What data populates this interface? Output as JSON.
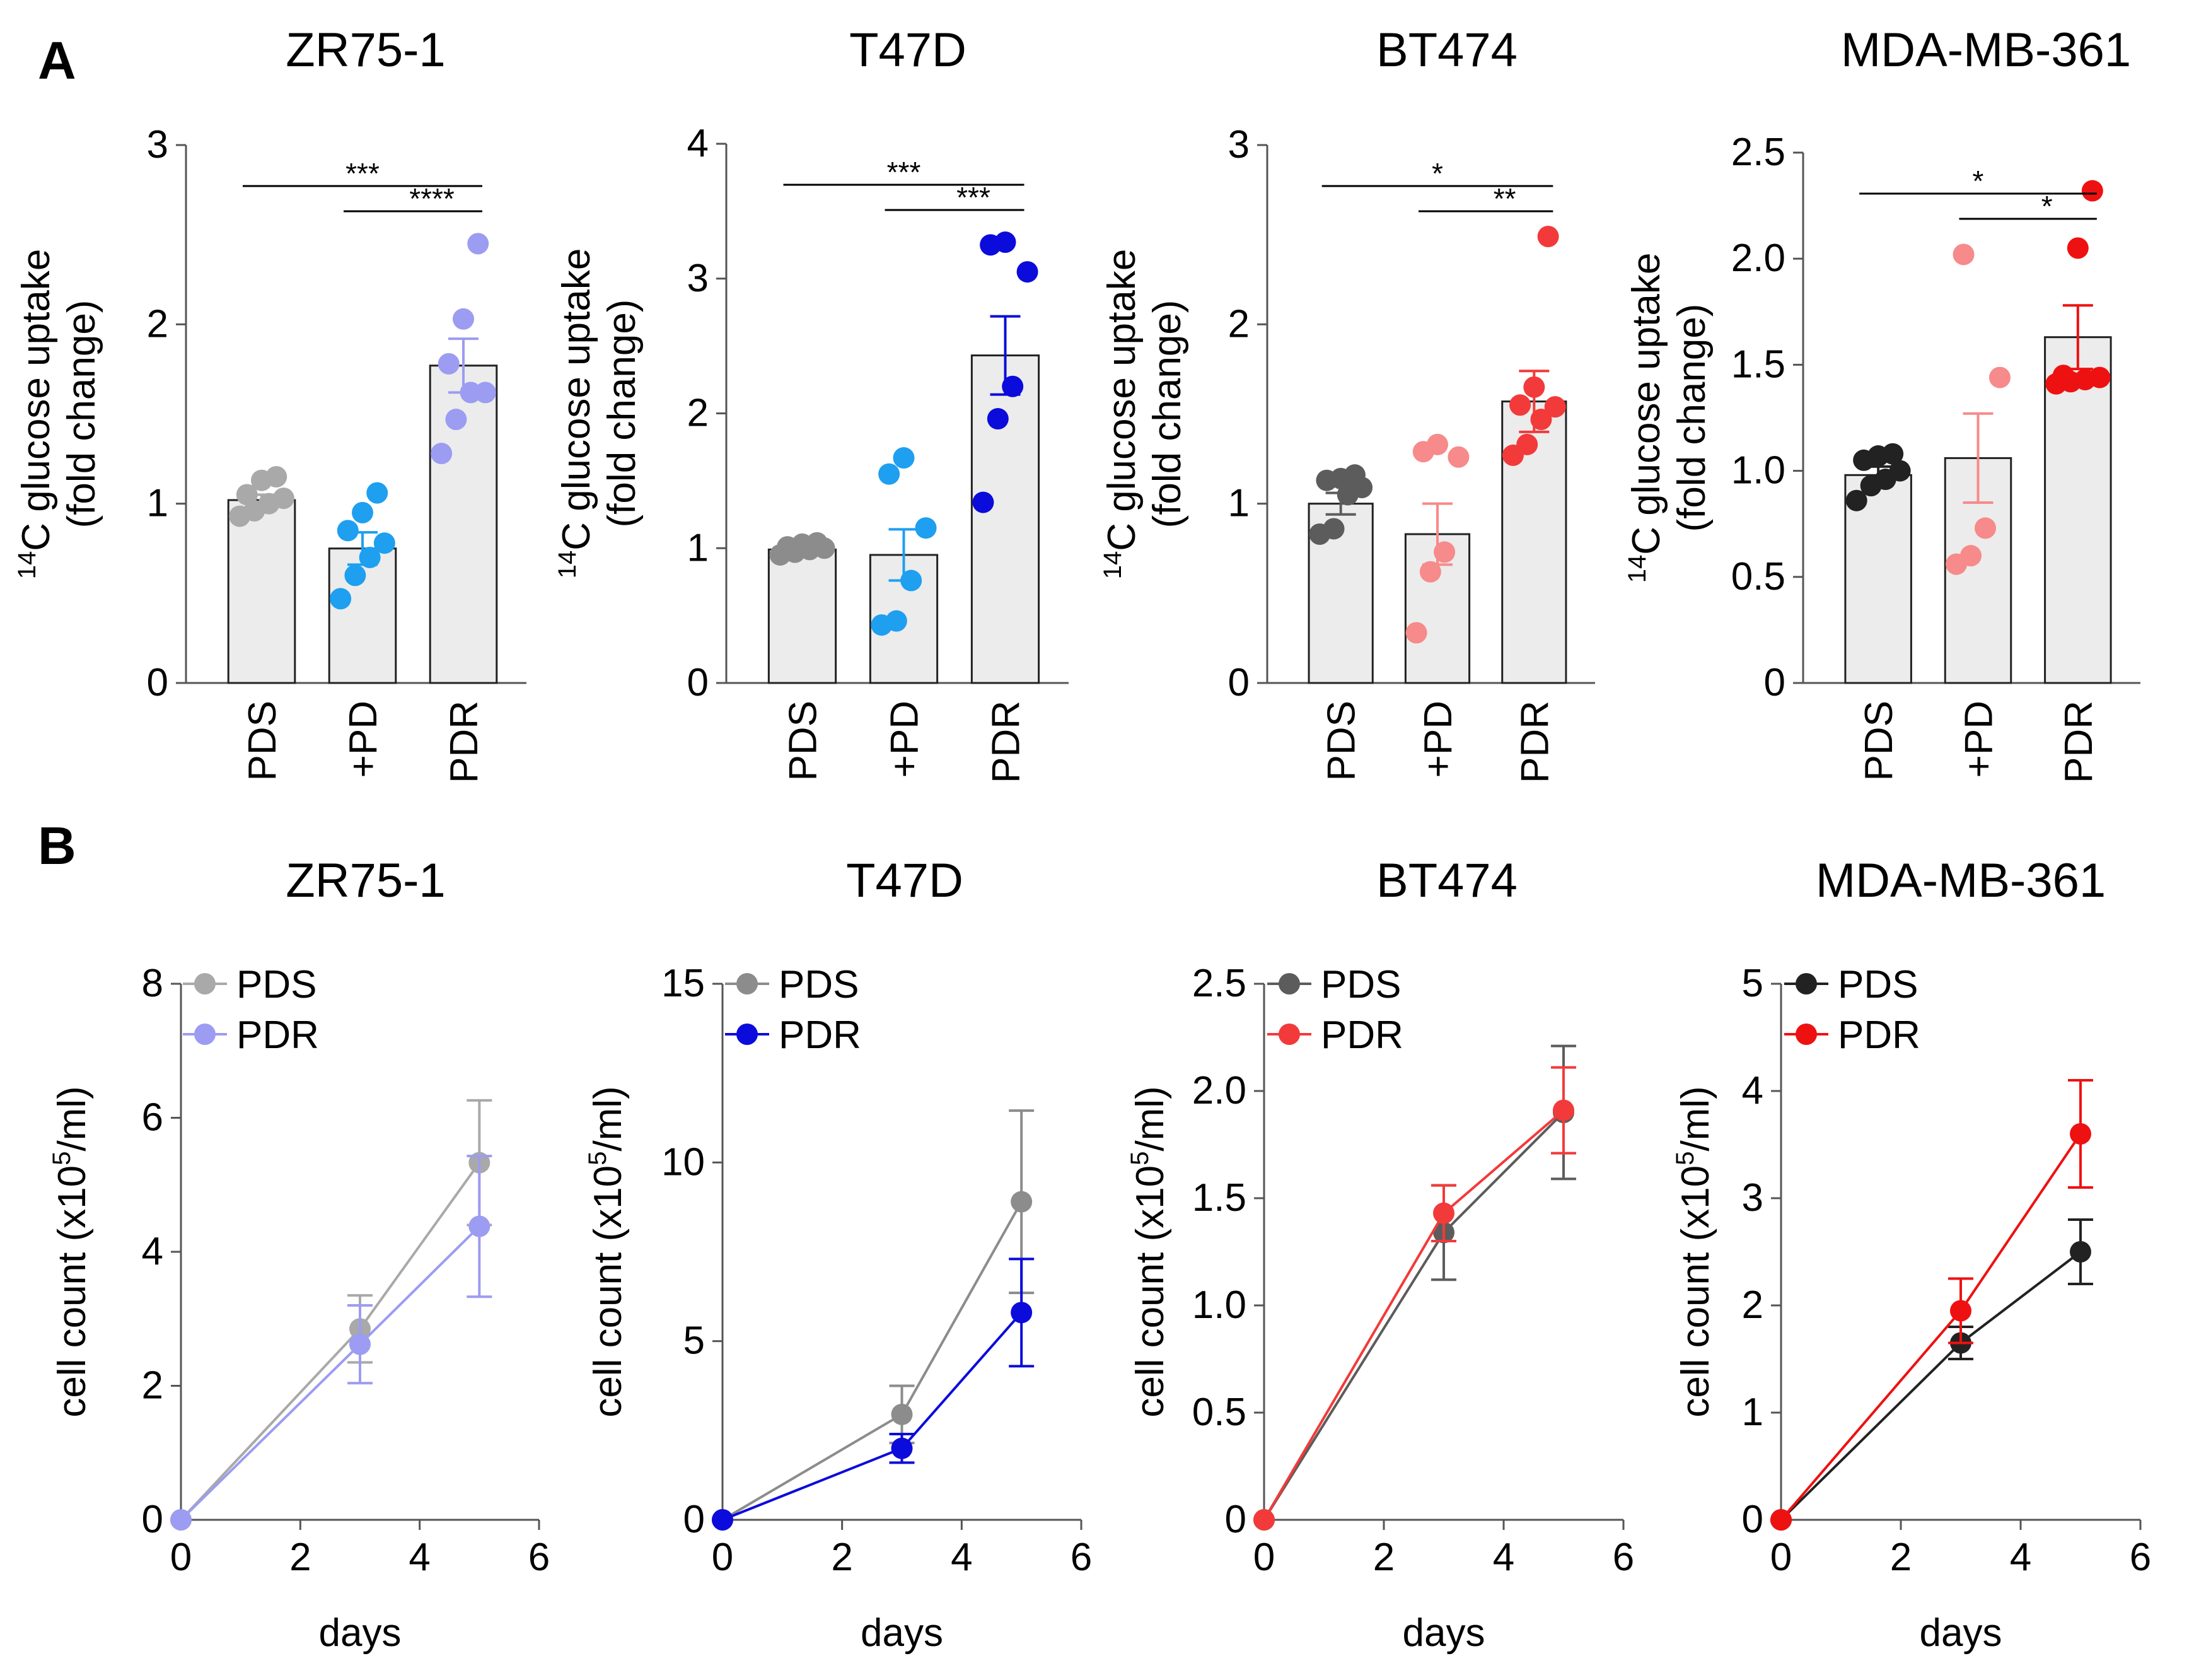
{
  "panels": {
    "a": "A",
    "b": "B"
  },
  "axis_labels": {
    "bar_ylabel_iso": "14",
    "bar_ylabel_main": "C glucose uptake",
    "bar_ylabel_sub": "(fold change)",
    "line_ylabel_pre": "cell count (x10",
    "line_ylabel_sup": "5",
    "line_ylabel_post": "/ml)",
    "line_xlabel": "days"
  },
  "chart_data": [
    {
      "type": "bar",
      "panel": "A",
      "title": "ZR75-1",
      "categories": [
        "PDS",
        "+PD",
        "PDR"
      ],
      "values": [
        1.02,
        0.75,
        1.77
      ],
      "sem": [
        0.03,
        0.09,
        0.15
      ],
      "points": [
        [
          0.93,
          0.96,
          1.0,
          1.03,
          1.05,
          1.13,
          1.15
        ],
        [
          0.47,
          0.6,
          0.7,
          0.78,
          0.85,
          0.95,
          1.06
        ],
        [
          1.28,
          1.47,
          1.62,
          1.62,
          1.78,
          2.03,
          2.45
        ]
      ],
      "point_colors": [
        "#a9a9a9",
        "#1e9ff0",
        "#9c9cf2"
      ],
      "ylim": [
        0,
        3
      ],
      "yticks": [
        "0",
        "1",
        "2",
        "3"
      ],
      "significance": [
        {
          "from": 0,
          "to": 2,
          "label": "***"
        },
        {
          "from": 1,
          "to": 2,
          "label": "****"
        }
      ]
    },
    {
      "type": "bar",
      "panel": "A",
      "title": "T47D",
      "categories": [
        "PDS",
        "+PD",
        "PDR"
      ],
      "values": [
        0.99,
        0.95,
        2.43
      ],
      "sem": [
        0.02,
        0.19,
        0.29
      ],
      "points": [
        [
          0.95,
          0.97,
          0.99,
          1.0,
          1.01,
          1.03,
          1.04
        ],
        [
          0.43,
          0.46,
          0.76,
          1.15,
          1.55,
          1.67
        ],
        [
          1.34,
          1.96,
          2.2,
          3.05,
          3.25,
          3.27
        ]
      ],
      "point_colors": [
        "#8c8c8c",
        "#1e9ff0",
        "#0b0bdb"
      ],
      "ylim": [
        0,
        4
      ],
      "yticks": [
        "0",
        "1",
        "2",
        "3",
        "4"
      ],
      "significance": [
        {
          "from": 0,
          "to": 2,
          "label": "***"
        },
        {
          "from": 1,
          "to": 2,
          "label": "***"
        }
      ]
    },
    {
      "type": "bar",
      "panel": "A",
      "title": "BT474",
      "categories": [
        "PDS",
        "+PD",
        "PDR"
      ],
      "values": [
        1.0,
        0.83,
        1.57
      ],
      "sem": [
        0.06,
        0.17,
        0.17
      ],
      "points": [
        [
          0.83,
          0.86,
          1.05,
          1.09,
          1.13,
          1.14,
          1.16
        ],
        [
          0.28,
          0.62,
          0.73,
          1.26,
          1.29,
          1.33
        ],
        [
          1.27,
          1.33,
          1.47,
          1.54,
          1.55,
          1.65,
          2.49
        ]
      ],
      "point_colors": [
        "#5c5c5c",
        "#f78a8a",
        "#f23a3a"
      ],
      "ylim": [
        0,
        3
      ],
      "yticks": [
        "0",
        "1",
        "2",
        "3"
      ],
      "significance": [
        {
          "from": 0,
          "to": 2,
          "label": "*"
        },
        {
          "from": 1,
          "to": 2,
          "label": "**"
        }
      ]
    },
    {
      "type": "bar",
      "panel": "A",
      "title": "MDA-MB-361",
      "categories": [
        "PDS",
        "+PD",
        "PDR"
      ],
      "values": [
        0.98,
        1.06,
        1.63
      ],
      "sem": [
        0.04,
        0.21,
        0.15
      ],
      "points": [
        [
          0.86,
          0.93,
          0.96,
          1.0,
          1.05,
          1.07,
          1.08
        ],
        [
          0.56,
          0.6,
          0.73,
          1.44,
          2.02
        ],
        [
          1.41,
          1.42,
          1.43,
          1.44,
          1.45,
          2.05,
          2.32
        ]
      ],
      "point_colors": [
        "#222222",
        "#f78a8a",
        "#ee1111"
      ],
      "ylim": [
        0,
        2.5
      ],
      "yticks": [
        "0",
        "0.5",
        "1.0",
        "1.5",
        "2.0",
        "2.5"
      ],
      "significance": [
        {
          "from": 0,
          "to": 2,
          "label": "*"
        },
        {
          "from": 1,
          "to": 2,
          "label": "*"
        }
      ]
    },
    {
      "type": "line",
      "panel": "B",
      "title": "ZR75-1",
      "x": [
        0,
        3,
        5
      ],
      "series": [
        {
          "name": "PDS",
          "values": [
            0,
            2.85,
            5.33
          ],
          "err": [
            0,
            0.5,
            0.93
          ],
          "color": "#a9a9a9"
        },
        {
          "name": "PDR",
          "values": [
            0,
            2.62,
            4.38
          ],
          "err": [
            0,
            0.58,
            1.05
          ],
          "color": "#9c9cf2"
        }
      ],
      "xlim": [
        0,
        6
      ],
      "xticks": [
        "0",
        "2",
        "4",
        "6"
      ],
      "ylim": [
        0,
        8
      ],
      "yticks": [
        "0",
        "2",
        "4",
        "6",
        "8"
      ]
    },
    {
      "type": "line",
      "panel": "B",
      "title": "T47D",
      "x": [
        0,
        3,
        5
      ],
      "series": [
        {
          "name": "PDS",
          "values": [
            0,
            2.95,
            8.9
          ],
          "err": [
            0,
            0.8,
            2.55
          ],
          "color": "#8c8c8c"
        },
        {
          "name": "PDR",
          "values": [
            0,
            2.0,
            5.8
          ],
          "err": [
            0,
            0.4,
            1.5
          ],
          "color": "#0b0bdb"
        }
      ],
      "xlim": [
        0,
        6
      ],
      "xticks": [
        "0",
        "2",
        "4",
        "6"
      ],
      "ylim": [
        0,
        15
      ],
      "yticks": [
        "0",
        "5",
        "10",
        "15"
      ]
    },
    {
      "type": "line",
      "panel": "B",
      "title": "BT474",
      "x": [
        0,
        3,
        5
      ],
      "series": [
        {
          "name": "PDS",
          "values": [
            0,
            1.34,
            1.9
          ],
          "err": [
            0,
            0.22,
            0.31
          ],
          "color": "#5c5c5c"
        },
        {
          "name": "PDR",
          "values": [
            0,
            1.43,
            1.91
          ],
          "err": [
            0,
            0.13,
            0.2
          ],
          "color": "#f23a3a"
        }
      ],
      "xlim": [
        0,
        6
      ],
      "xticks": [
        "0",
        "2",
        "4",
        "6"
      ],
      "ylim": [
        0,
        2.5
      ],
      "yticks": [
        "0",
        "0.5",
        "1.0",
        "1.5",
        "2.0",
        "2.5"
      ]
    },
    {
      "type": "line",
      "panel": "B",
      "title": "MDA-MB-361",
      "x": [
        0,
        3,
        5
      ],
      "series": [
        {
          "name": "PDS",
          "values": [
            0,
            1.65,
            2.5
          ],
          "err": [
            0,
            0.15,
            0.3
          ],
          "color": "#222222"
        },
        {
          "name": "PDR",
          "values": [
            0,
            1.95,
            3.6
          ],
          "err": [
            0,
            0.3,
            0.5
          ],
          "color": "#ee1111"
        }
      ],
      "xlim": [
        0,
        6
      ],
      "xticks": [
        "0",
        "2",
        "4",
        "6"
      ],
      "ylim": [
        0,
        5
      ],
      "yticks": [
        "0",
        "1",
        "2",
        "3",
        "4",
        "5"
      ]
    }
  ]
}
